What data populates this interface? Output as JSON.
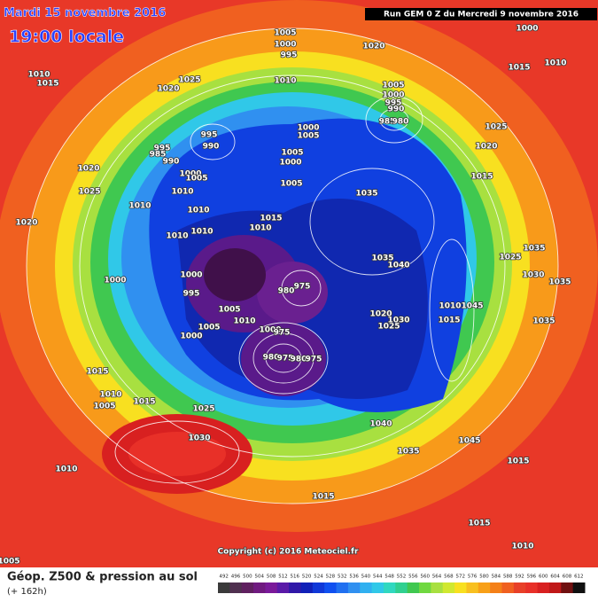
{
  "header": {
    "date": "Mardi 15 novembre 2016",
    "time": "19:00 locale",
    "run": "Run GEM 0 Z du Mercredi 9 novembre 2016"
  },
  "copyright": "Copyright (c) 2016 Meteociel.fr",
  "footer": {
    "title": "Géop. Z500 & pression au sol",
    "lead": "(+ 162h)"
  },
  "colorbar": {
    "labels": [
      492,
      496,
      500,
      504,
      508,
      512,
      516,
      520,
      524,
      528,
      532,
      536,
      540,
      544,
      548,
      552,
      556,
      560,
      564,
      568,
      572,
      576,
      580,
      584,
      588,
      592,
      596,
      600,
      604,
      608,
      612
    ],
    "colors": [
      "#3a3a3a",
      "#503050",
      "#602060",
      "#701a80",
      "#7a1a9a",
      "#5a1aa8",
      "#3018a8",
      "#1020b8",
      "#1038d8",
      "#1050f0",
      "#2070f0",
      "#3090f0",
      "#30b0f0",
      "#30c8e8",
      "#30d8c0",
      "#30d090",
      "#40c850",
      "#70d840",
      "#a8e040",
      "#d0e830",
      "#f8e020",
      "#f8c020",
      "#f8a018",
      "#f48018",
      "#f06020",
      "#e84028",
      "#e83028",
      "#d82020",
      "#c01818",
      "#701010",
      "#101010"
    ]
  },
  "pressure_labels": [
    1005,
    1000,
    995,
    1020,
    1015,
    1010,
    1000,
    1010,
    1015,
    1020,
    1025,
    1010,
    1005,
    1000,
    995,
    990,
    985,
    980,
    1000,
    1005,
    995,
    990,
    995,
    985,
    990,
    1000,
    1005,
    1025,
    1020,
    1015,
    1005,
    1000,
    1005,
    1035,
    1020,
    1025,
    1010,
    1010,
    1010,
    1015,
    1010,
    1010,
    1010,
    1020,
    1000,
    1000,
    995,
    1005,
    1010,
    980,
    975,
    1000,
    975,
    1000,
    1005,
    1035,
    1040,
    1025,
    1035,
    1030,
    1035,
    1010,
    1015,
    1045,
    1025,
    1030,
    1020,
    1035,
    980,
    975,
    980,
    975,
    1015,
    1010,
    1005,
    1015,
    1025,
    1030,
    1040,
    1035,
    1045,
    1010,
    1015,
    1015,
    1015,
    1010,
    1005
  ]
}
